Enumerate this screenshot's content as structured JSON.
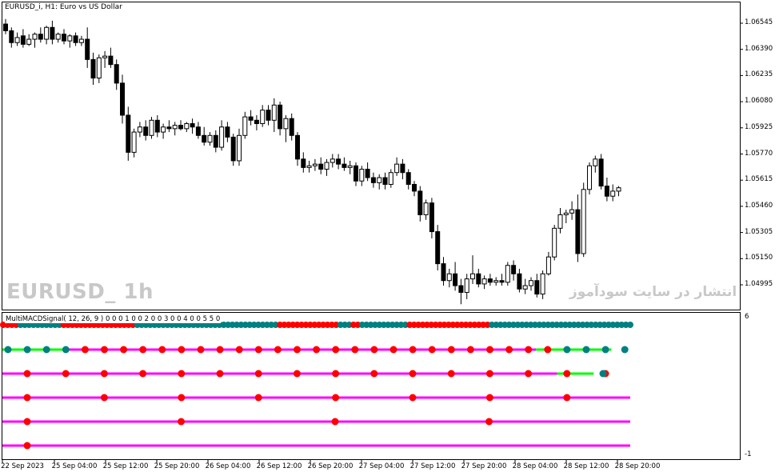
{
  "chart_title": "EURUSD_i, H1:  Euro vs US Dollar",
  "symbol_watermark": "EURUSD_ 1h",
  "site_watermark": "انتشار در سایت سودآموز",
  "indicator": {
    "label": "MultiMACDSignal( 12, 26, 9 ) 0 0 0 1 0 0 2 0 0 3 0 0 4 0 0 5 5 0",
    "ymax_label": "6",
    "ymin_label": "-1"
  },
  "colors": {
    "bull_signal": "#008080",
    "bear_signal": "#ff0000",
    "line_bear": "#ff00ff",
    "line_bull": "#00ff00",
    "candle": "#000000"
  },
  "price_axis": [
    "1.06545",
    "1.06390",
    "1.06235",
    "1.06080",
    "1.05925",
    "1.05770",
    "1.05615",
    "1.05460",
    "1.05305",
    "1.05150",
    "1.04995"
  ],
  "time_axis": [
    "22 Sep 2023",
    "25 Sep 04:00",
    "25 Sep 12:00",
    "25 Sep 20:00",
    "26 Sep 04:00",
    "26 Sep 12:00",
    "26 Sep 20:00",
    "27 Sep 04:00",
    "27 Sep 12:00",
    "27 Sep 20:00",
    "28 Sep 04:00",
    "28 Sep 12:00",
    "28 Sep 20:00"
  ],
  "chart_data": [
    {
      "type": "candlestick",
      "title": "EURUSD_i, H1:  Euro vs US Dollar",
      "ylim": [
        1.0492,
        1.0658
      ],
      "candles": [
        [
          1.0654,
          1.0657,
          1.0648,
          1.065
        ],
        [
          1.065,
          1.0652,
          1.064,
          1.0643
        ],
        [
          1.0643,
          1.0649,
          1.0641,
          1.0646
        ],
        [
          1.0647,
          1.0651,
          1.064,
          1.0642
        ],
        [
          1.0642,
          1.0648,
          1.0641,
          1.0645
        ],
        [
          1.0645,
          1.0649,
          1.064,
          1.0648
        ],
        [
          1.0648,
          1.0652,
          1.0643,
          1.0645
        ],
        [
          1.0645,
          1.0653,
          1.0642,
          1.0652
        ],
        [
          1.0652,
          1.0656,
          1.0642,
          1.0645
        ],
        [
          1.0645,
          1.0649,
          1.0643,
          1.0648
        ],
        [
          1.0648,
          1.0651,
          1.0642,
          1.0644
        ],
        [
          1.0644,
          1.0648,
          1.064,
          1.0647
        ],
        [
          1.0647,
          1.0649,
          1.0641,
          1.0643
        ],
        [
          1.0643,
          1.0647,
          1.0641,
          1.0645
        ],
        [
          1.0645,
          1.0652,
          1.0628,
          1.0633
        ],
        [
          1.0633,
          1.0637,
          1.0618,
          1.0622
        ],
        [
          1.0622,
          1.0636,
          1.0619,
          1.0634
        ],
        [
          1.0634,
          1.0638,
          1.0628,
          1.0635
        ],
        [
          1.0635,
          1.064,
          1.0628,
          1.063
        ],
        [
          1.063,
          1.0633,
          1.0615,
          1.0619
        ],
        [
          1.0619,
          1.0624,
          1.0595,
          1.06
        ],
        [
          1.06,
          1.0605,
          1.0573,
          1.0578
        ],
        [
          1.0578,
          1.0592,
          1.0575,
          1.059
        ],
        [
          1.059,
          1.0596,
          1.0587,
          1.0593
        ],
        [
          1.0593,
          1.0597,
          1.0585,
          1.0588
        ],
        [
          1.0588,
          1.0599,
          1.0586,
          1.0597
        ],
        [
          1.0597,
          1.06,
          1.0587,
          1.059
        ],
        [
          1.059,
          1.0595,
          1.0586,
          1.0593
        ],
        [
          1.0593,
          1.0597,
          1.059,
          1.0592
        ],
        [
          1.0592,
          1.0596,
          1.0588,
          1.0594
        ],
        [
          1.0594,
          1.0597,
          1.0591,
          1.0592
        ],
        [
          1.0592,
          1.0596,
          1.059,
          1.0595
        ],
        [
          1.0595,
          1.0598,
          1.0589,
          1.0593
        ],
        [
          1.0593,
          1.0596,
          1.0586,
          1.0588
        ],
        [
          1.0588,
          1.0593,
          1.0582,
          1.0584
        ],
        [
          1.0584,
          1.059,
          1.0582,
          1.0588
        ],
        [
          1.0588,
          1.0591,
          1.0578,
          1.0581
        ],
        [
          1.0581,
          1.0597,
          1.0579,
          1.0593
        ],
        [
          1.0593,
          1.0596,
          1.0584,
          1.0587
        ],
        [
          1.0587,
          1.0589,
          1.057,
          1.0573
        ],
        [
          1.0573,
          1.0592,
          1.057,
          1.0588
        ],
        [
          1.0588,
          1.0602,
          1.0586,
          1.0599
        ],
        [
          1.0599,
          1.0603,
          1.0594,
          1.0597
        ],
        [
          1.0597,
          1.06,
          1.0591,
          1.0595
        ],
        [
          1.0595,
          1.0606,
          1.0593,
          1.0603
        ],
        [
          1.0603,
          1.0606,
          1.0594,
          1.0597
        ],
        [
          1.0597,
          1.061,
          1.059,
          1.0606
        ],
        [
          1.0606,
          1.0608,
          1.0588,
          1.0592
        ],
        [
          1.0592,
          1.06,
          1.0584,
          1.0598
        ],
        [
          1.0598,
          1.0601,
          1.0585,
          1.0588
        ],
        [
          1.0588,
          1.059,
          1.057,
          1.0574
        ],
        [
          1.0574,
          1.0578,
          1.0566,
          1.0569
        ],
        [
          1.0569,
          1.0573,
          1.0566,
          1.057
        ],
        [
          1.057,
          1.0574,
          1.0567,
          1.0571
        ],
        [
          1.0571,
          1.0575,
          1.0565,
          1.0568
        ],
        [
          1.0568,
          1.0574,
          1.0564,
          1.0572
        ],
        [
          1.0572,
          1.0577,
          1.0569,
          1.0574
        ],
        [
          1.0574,
          1.0577,
          1.0568,
          1.0571
        ],
        [
          1.0571,
          1.0575,
          1.0567,
          1.0569
        ],
        [
          1.0569,
          1.0573,
          1.0565,
          1.057
        ],
        [
          1.057,
          1.0572,
          1.0558,
          1.0561
        ],
        [
          1.0561,
          1.057,
          1.0558,
          1.0568
        ],
        [
          1.0568,
          1.0572,
          1.0561,
          1.0563
        ],
        [
          1.0563,
          1.0566,
          1.0557,
          1.056
        ],
        [
          1.056,
          1.0565,
          1.0556,
          1.0563
        ],
        [
          1.0563,
          1.0566,
          1.0556,
          1.0559
        ],
        [
          1.0559,
          1.0568,
          1.0557,
          1.0566
        ],
        [
          1.0566,
          1.0575,
          1.0564,
          1.0571
        ],
        [
          1.0571,
          1.0574,
          1.0562,
          1.0566
        ],
        [
          1.0566,
          1.0568,
          1.0556,
          1.0559
        ],
        [
          1.0559,
          1.0561,
          1.0552,
          1.0555
        ],
        [
          1.0555,
          1.0558,
          1.0537,
          1.0541
        ],
        [
          1.0541,
          1.055,
          1.0538,
          1.0548
        ],
        [
          1.0548,
          1.0551,
          1.0527,
          1.0531
        ],
        [
          1.0531,
          1.0535,
          1.0508,
          1.0512
        ],
        [
          1.0512,
          1.0516,
          1.0499,
          1.0502
        ],
        [
          1.0502,
          1.0509,
          1.0498,
          1.0506
        ],
        [
          1.0506,
          1.0513,
          1.0496,
          1.0499
        ],
        [
          1.0499,
          1.0503,
          1.0488,
          1.0495
        ],
        [
          1.0495,
          1.0506,
          1.0491,
          1.0503
        ],
        [
          1.0503,
          1.0517,
          1.05,
          1.0506
        ],
        [
          1.0506,
          1.0509,
          1.0498,
          1.05
        ],
        [
          1.05,
          1.0505,
          1.0497,
          1.0503
        ],
        [
          1.0503,
          1.0506,
          1.0499,
          1.0501
        ],
        [
          1.0501,
          1.0504,
          1.0499,
          1.0502
        ],
        [
          1.0502,
          1.0506,
          1.0499,
          1.0501
        ],
        [
          1.0501,
          1.0513,
          1.0499,
          1.0511
        ],
        [
          1.0511,
          1.0514,
          1.0502,
          1.0506
        ],
        [
          1.0506,
          1.0509,
          1.0495,
          1.0497
        ],
        [
          1.0497,
          1.0503,
          1.0494,
          1.0499
        ],
        [
          1.0499,
          1.0504,
          1.0496,
          1.0502
        ],
        [
          1.0502,
          1.0506,
          1.0492,
          1.0494
        ],
        [
          1.0494,
          1.0508,
          1.0491,
          1.0506
        ],
        [
          1.0506,
          1.0519,
          1.0505,
          1.0516
        ],
        [
          1.0516,
          1.0535,
          1.0514,
          1.0533
        ],
        [
          1.0533,
          1.0545,
          1.053,
          1.0541
        ],
        [
          1.0541,
          1.0544,
          1.0536,
          1.0542
        ],
        [
          1.0542,
          1.0549,
          1.0538,
          1.0544
        ],
        [
          1.0544,
          1.0553,
          1.0513,
          1.0518
        ],
        [
          1.0518,
          1.056,
          1.0516,
          1.0556
        ],
        [
          1.0556,
          1.0572,
          1.0553,
          1.057
        ],
        [
          1.057,
          1.0576,
          1.0566,
          1.0574
        ],
        [
          1.0574,
          1.0577,
          1.0556,
          1.0558
        ],
        [
          1.0558,
          1.0563,
          1.0549,
          1.0552
        ],
        [
          1.0552,
          1.0559,
          1.0549,
          1.0555
        ],
        [
          1.0555,
          1.0558,
          1.0552,
          1.0557
        ]
      ],
      "price_ticks": [
        "1.06545",
        "1.06390",
        "1.06235",
        "1.06080",
        "1.05925",
        "1.05770",
        "1.05615",
        "1.05460",
        "1.05305",
        "1.05150",
        "1.04995"
      ],
      "time_ticks": [
        "22 Sep 2023",
        "25 Sep 04:00",
        "25 Sep 12:00",
        "25 Sep 20:00",
        "26 Sep 04:00",
        "26 Sep 12:00",
        "26 Sep 20:00",
        "27 Sep 04:00",
        "27 Sep 12:00",
        "27 Sep 20:00",
        "28 Sep 04:00",
        "28 Sep 12:00",
        "28 Sep 20:00"
      ]
    },
    {
      "type": "scatter",
      "title": "MultiMACDSignal( 12, 26, 9 )",
      "ylim": [
        -1,
        6
      ],
      "rows": [
        {
          "level": 5,
          "dots": "RRRRTTTTTTTTTTRRRRRRRRRRRRRRRRRTTTTTTTTTTTTTTTTTTTTTTTTTTTTTTTTTRRRRRRRRRRRRRRTTTRRTTTTTTTTTTTRRRRRRRRRRRRRRRRRRRTTTTTTTTTTTTTTTTTTTTTTTTTTTTTTTTT",
          "segments": [
            [
              "T",
              "T"
            ]
          ]
        },
        {
          "level": 4,
          "dots": "TTTTRRRRRRRRRRRRRRRRRRRRRRRRRTTTT",
          "line": [
            [
              "line_bull",
              0,
              3
            ],
            [
              "line_bear",
              3,
              28
            ],
            [
              "line_bull",
              28,
              32
            ]
          ]
        },
        {
          "level": 3,
          "dots": "RRRRRRRRRRRRRRRRT",
          "line": [
            [
              "line_bear",
              0,
              15
            ],
            [
              "line_bull",
              15,
              16
            ]
          ]
        },
        {
          "level": 2,
          "dots": "RRRRRRRR",
          "line": [
            [
              "line_bull",
              0,
              0
            ],
            [
              "line_bear",
              0,
              8
            ]
          ]
        },
        {
          "level": 1,
          "dots": "RRRR",
          "line": [
            [
              "line_bear",
              0,
              4
            ]
          ]
        },
        {
          "level": 0,
          "dots": "R",
          "line": [
            [
              "line_bear",
              0,
              1
            ]
          ]
        }
      ]
    }
  ]
}
